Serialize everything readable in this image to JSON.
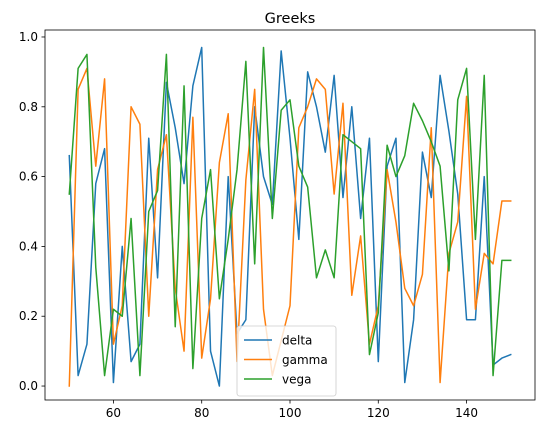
{
  "chart_data": {
    "type": "line",
    "title": "Greeks",
    "xlabel": "",
    "ylabel": "",
    "xlim": [
      44.5,
      155.5
    ],
    "ylim": [
      -0.04,
      1.02
    ],
    "xticks": [
      60,
      80,
      100,
      120,
      140
    ],
    "yticks": [
      0.0,
      0.2,
      0.4,
      0.6,
      0.8,
      1.0
    ],
    "ytick_labels": [
      "0.0",
      "0.2",
      "0.4",
      "0.6",
      "0.8",
      "1.0"
    ],
    "grid": false,
    "legend_position": "lower-center",
    "x": [
      50,
      52,
      54,
      56,
      58,
      60,
      62,
      64,
      66,
      68,
      70,
      72,
      74,
      76,
      78,
      80,
      82,
      84,
      86,
      88,
      90,
      92,
      94,
      96,
      98,
      100,
      102,
      104,
      106,
      108,
      110,
      112,
      114,
      116,
      118,
      120,
      122,
      124,
      126,
      128,
      130,
      132,
      134,
      136,
      138,
      140,
      142,
      144,
      146,
      148,
      150
    ],
    "series": [
      {
        "name": "delta",
        "color": "#1f77b4",
        "values": [
          0.66,
          0.03,
          0.12,
          0.58,
          0.68,
          0.01,
          0.4,
          0.07,
          0.12,
          0.71,
          0.31,
          0.87,
          0.74,
          0.58,
          0.86,
          0.97,
          0.1,
          0.0,
          0.6,
          0.15,
          0.19,
          0.8,
          0.6,
          0.52,
          0.96,
          0.71,
          0.42,
          0.9,
          0.8,
          0.67,
          0.89,
          0.54,
          0.8,
          0.48,
          0.71,
          0.07,
          0.63,
          0.71,
          0.01,
          0.19,
          0.67,
          0.54,
          0.89,
          0.73,
          0.55,
          0.19,
          0.19,
          0.6,
          0.06,
          0.08,
          0.09
        ]
      },
      {
        "name": "gamma",
        "color": "#ff7f0e",
        "values": [
          0.0,
          0.85,
          0.91,
          0.63,
          0.88,
          0.12,
          0.23,
          0.8,
          0.75,
          0.2,
          0.62,
          0.72,
          0.28,
          0.1,
          0.77,
          0.08,
          0.25,
          0.64,
          0.78,
          0.07,
          0.59,
          0.85,
          0.22,
          0.03,
          0.13,
          0.23,
          0.74,
          0.8,
          0.88,
          0.85,
          0.55,
          0.81,
          0.26,
          0.43,
          0.12,
          0.23,
          0.62,
          0.47,
          0.28,
          0.23,
          0.32,
          0.74,
          0.01,
          0.38,
          0.47,
          0.83,
          0.22,
          0.38,
          0.35,
          0.53,
          0.53
        ]
      },
      {
        "name": "vega",
        "color": "#2ca02c",
        "values": [
          0.55,
          0.91,
          0.95,
          0.34,
          0.03,
          0.22,
          0.2,
          0.48,
          0.03,
          0.5,
          0.56,
          0.95,
          0.17,
          0.86,
          0.05,
          0.48,
          0.62,
          0.25,
          0.42,
          0.62,
          0.93,
          0.35,
          0.97,
          0.48,
          0.79,
          0.82,
          0.63,
          0.57,
          0.31,
          0.39,
          0.31,
          0.72,
          0.7,
          0.68,
          0.09,
          0.21,
          0.69,
          0.6,
          0.66,
          0.81,
          0.76,
          0.7,
          0.63,
          0.33,
          0.82,
          0.91,
          0.42,
          0.89,
          0.03,
          0.36,
          0.36
        ]
      }
    ]
  }
}
